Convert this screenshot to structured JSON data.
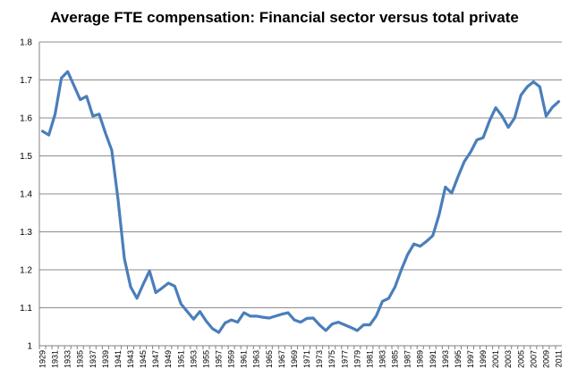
{
  "chart_data": {
    "type": "line",
    "title": "Average FTE compensation: Financial sector versus total private",
    "xlabel": "",
    "ylabel": "",
    "ylim": [
      1,
      1.8
    ],
    "yticks": [
      "1",
      "1.1",
      "1.2",
      "1.3",
      "1.4",
      "1.5",
      "1.6",
      "1.7",
      "1.8"
    ],
    "xticks": [
      "1929",
      "1931",
      "1933",
      "1935",
      "1937",
      "1939",
      "1941",
      "1943",
      "1945",
      "1947",
      "1949",
      "1951",
      "1953",
      "1955",
      "1957",
      "1959",
      "1961",
      "1963",
      "1965",
      "1967",
      "1969",
      "1971",
      "1973",
      "1975",
      "1977",
      "1979",
      "1981",
      "1983",
      "1985",
      "1987",
      "1989",
      "1991",
      "1993",
      "1995",
      "1997",
      "1999",
      "2001",
      "2003",
      "2005",
      "2007",
      "2009",
      "2011"
    ],
    "grid": true,
    "line_color": "#4a7ebb",
    "series": [
      {
        "name": "",
        "x": [
          1929,
          1930,
          1931,
          1932,
          1933,
          1934,
          1935,
          1936,
          1937,
          1938,
          1939,
          1940,
          1941,
          1942,
          1943,
          1944,
          1945,
          1946,
          1947,
          1948,
          1949,
          1950,
          1951,
          1952,
          1953,
          1954,
          1955,
          1956,
          1957,
          1958,
          1959,
          1960,
          1961,
          1962,
          1963,
          1964,
          1965,
          1966,
          1967,
          1968,
          1969,
          1970,
          1971,
          1972,
          1973,
          1974,
          1975,
          1976,
          1977,
          1978,
          1979,
          1980,
          1981,
          1982,
          1983,
          1984,
          1985,
          1986,
          1987,
          1988,
          1989,
          1990,
          1991,
          1992,
          1993,
          1994,
          1995,
          1996,
          1997,
          1998,
          1999,
          2000,
          2001,
          2002,
          2003,
          2004,
          2005,
          2006,
          2007,
          2008,
          2009,
          2010,
          2011
        ],
        "values": [
          1.565,
          1.555,
          1.61,
          1.705,
          1.722,
          1.685,
          1.648,
          1.657,
          1.605,
          1.61,
          1.56,
          1.515,
          1.385,
          1.23,
          1.155,
          1.125,
          1.162,
          1.197,
          1.14,
          1.152,
          1.165,
          1.157,
          1.11,
          1.09,
          1.07,
          1.09,
          1.065,
          1.045,
          1.035,
          1.06,
          1.068,
          1.062,
          1.087,
          1.078,
          1.078,
          1.075,
          1.073,
          1.078,
          1.083,
          1.087,
          1.068,
          1.062,
          1.072,
          1.073,
          1.055,
          1.04,
          1.057,
          1.062,
          1.055,
          1.048,
          1.04,
          1.055,
          1.055,
          1.078,
          1.117,
          1.125,
          1.155,
          1.2,
          1.24,
          1.268,
          1.262,
          1.275,
          1.29,
          1.345,
          1.418,
          1.402,
          1.445,
          1.485,
          1.51,
          1.542,
          1.548,
          1.592,
          1.627,
          1.605,
          1.575,
          1.6,
          1.66,
          1.682,
          1.695,
          1.682,
          1.605,
          1.628,
          1.643
        ]
      }
    ]
  }
}
